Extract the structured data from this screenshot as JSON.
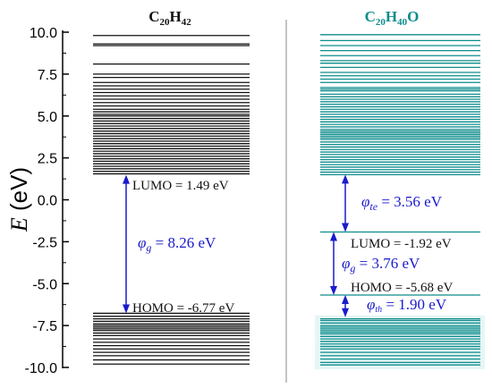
{
  "chart_data": {
    "type": "energy-level diagram",
    "ylabel_symbol": "E",
    "ylabel_unit": " (eV)",
    "ylim": [
      -10.0,
      10.0
    ],
    "yticks": [
      "10.0",
      "7.5",
      "5.0",
      "2.5",
      "0.0",
      "-2.5",
      "-5.0",
      "-7.5",
      "-10.0"
    ],
    "panels": [
      {
        "title_main": "C",
        "title_sub1": "20",
        "title_mid": "H",
        "title_sub2": "42",
        "title_tail": "",
        "color": "#111111",
        "lumo_value": 1.49,
        "homo_value": -6.77,
        "lumo_label": "LUMO = 1.49 eV",
        "homo_label": "HOMO = -6.77 eV",
        "gap_symbol": "φ",
        "gap_sub": "g",
        "gap_text": " = 8.26 eV",
        "levels": [
          9.8,
          9.3,
          9.2,
          8.1,
          7.5,
          7.3,
          7.0,
          6.8,
          6.6,
          6.4,
          6.2,
          6.0,
          5.8,
          5.6,
          5.4,
          5.25,
          5.1,
          5.0,
          4.85,
          4.7,
          4.55,
          4.4,
          4.25,
          4.1,
          3.95,
          3.8,
          3.65,
          3.5,
          3.35,
          3.2,
          3.05,
          2.9,
          2.75,
          2.6,
          2.45,
          2.3,
          2.15,
          2.0,
          1.85,
          1.7,
          1.55,
          -6.77,
          -6.95,
          -7.1,
          -7.25,
          -7.4,
          -7.5,
          -7.6,
          -7.7,
          -7.8,
          -7.95,
          -8.1,
          -8.3,
          -8.5,
          -8.7,
          -8.9,
          -9.1,
          -9.3,
          -9.55,
          -9.8
        ]
      },
      {
        "title_main": "C",
        "title_sub1": "20",
        "title_mid": "H",
        "title_sub2": "40",
        "title_tail": "O",
        "color": "#0e8c8c",
        "lumo_value": -1.92,
        "homo_value": -5.68,
        "lumo_label": "LUMO = -1.92 eV",
        "homo_label": "HOMO = -5.68 eV",
        "gap_symbol": "φ",
        "gap_sub": "g",
        "gap_text": " = 3.76 eV",
        "te_symbol": "φ",
        "te_sub": "te",
        "te_text": " = 3.56 eV",
        "th_symbol": "φ",
        "th_sub": "th",
        "th_text": " = 1.90 eV",
        "trap_top": 1.5,
        "trap_bottom": -7.0,
        "levels": [
          9.85,
          9.5,
          9.2,
          8.9,
          8.6,
          8.3,
          8.15,
          7.9,
          7.6,
          7.4,
          7.2,
          7.0,
          6.7,
          6.6,
          6.5,
          6.3,
          6.15,
          6.0,
          5.85,
          5.7,
          5.55,
          5.4,
          5.25,
          5.1,
          4.95,
          4.8,
          4.65,
          4.5,
          4.35,
          4.2,
          4.1,
          4.0,
          3.9,
          3.8,
          3.7,
          3.6,
          3.45,
          3.3,
          3.15,
          3.0,
          2.85,
          2.7,
          2.55,
          2.4,
          2.25,
          2.1,
          1.95,
          1.8,
          1.65,
          1.5,
          -1.92,
          -5.68,
          -7.1,
          -7.2,
          -7.35,
          -7.5,
          -7.6,
          -7.7,
          -7.8,
          -7.9,
          -8.0,
          -8.15,
          -8.3,
          -8.45,
          -8.6,
          -8.75,
          -8.9,
          -9.1,
          -9.3,
          -9.5,
          -9.7,
          -9.85
        ]
      }
    ]
  }
}
